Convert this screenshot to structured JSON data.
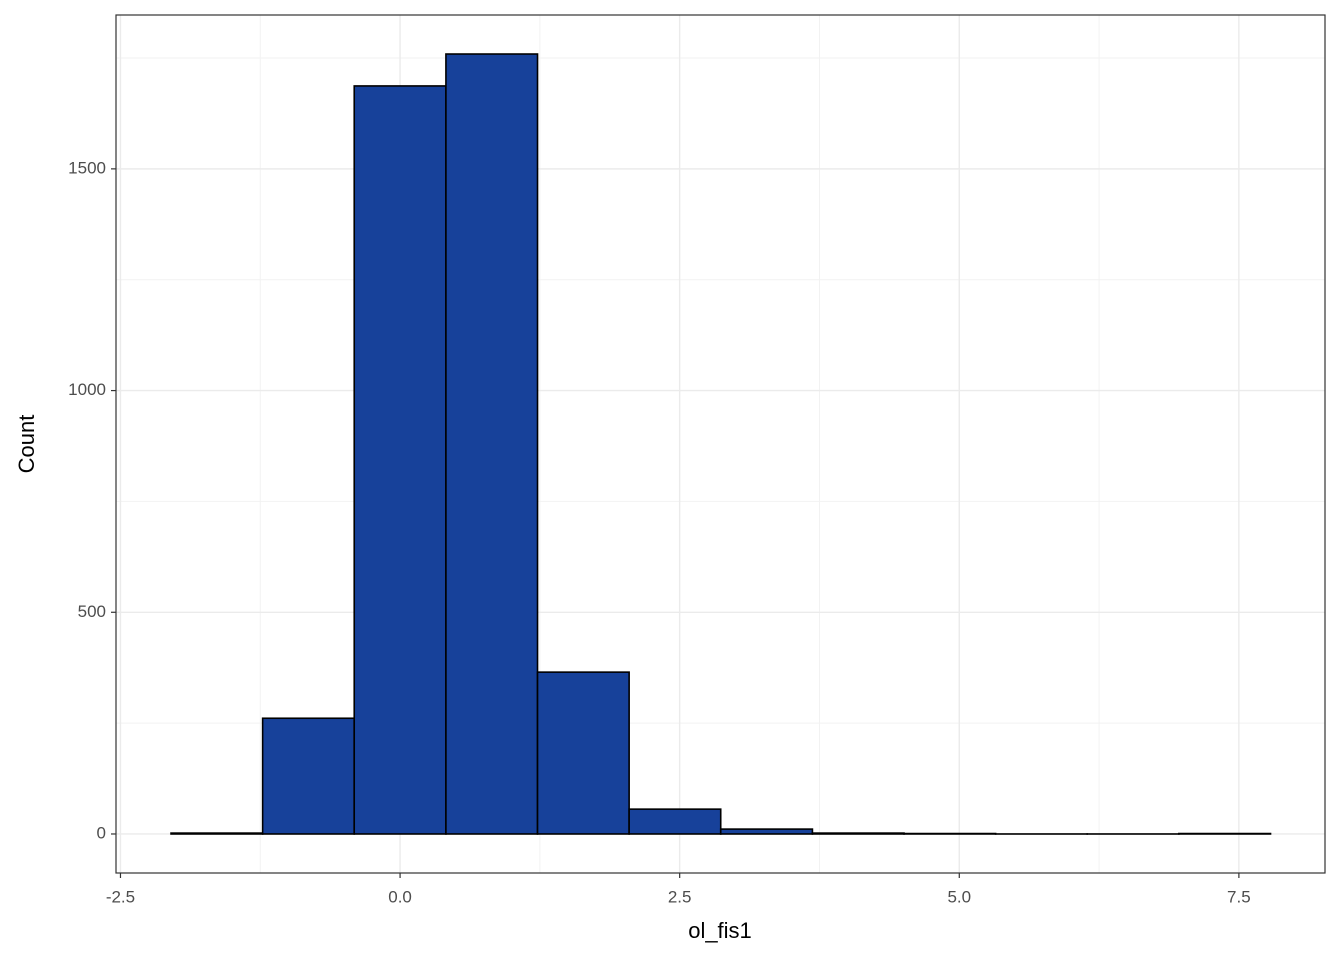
{
  "chart_data": {
    "type": "histogram",
    "x_label": "ol_fis1",
    "y_label": "Count",
    "bins": [
      -2.048,
      -1.229,
      -0.41,
      0.41,
      1.229,
      2.048,
      2.867,
      3.687,
      4.506,
      5.325,
      6.144,
      6.963,
      7.783
    ],
    "values": [
      2,
      261,
      1687,
      1759,
      365,
      56,
      11,
      2,
      1,
      0,
      0,
      1
    ],
    "color": "#17419a",
    "edge_color": "#000000",
    "xlim": [
      -2.54,
      8.27
    ],
    "xticks": [
      -2.5,
      0.0,
      2.5,
      5.0,
      7.5
    ],
    "x_minor_grid": [
      -1.25,
      1.25,
      3.75,
      6.25
    ],
    "ylim": [
      -88,
      1847
    ],
    "yticks": [
      0,
      500,
      1000,
      1500
    ],
    "y_minor_grid": [
      250,
      750,
      1250,
      1750
    ],
    "grid": true
  }
}
